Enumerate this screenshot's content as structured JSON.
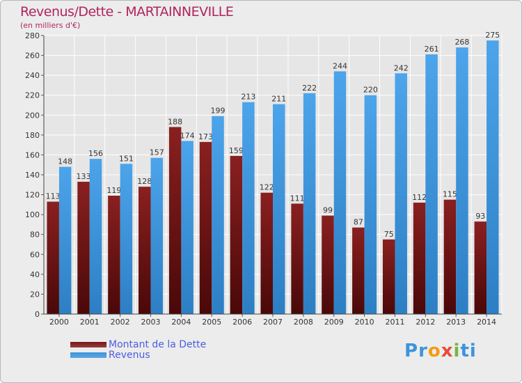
{
  "header": {
    "title": "Revenus/Dette - MARTAINNEVILLE",
    "subtitle": "(en milliers d'€)"
  },
  "colors": {
    "background": "#ececec",
    "title": "#b0245d",
    "dette": "#7a1414",
    "revenus": "#3c94dc",
    "legend_text": "#4a5de0",
    "grid": "#ffffff"
  },
  "legend": {
    "items": [
      {
        "label": "Montant de la Dette",
        "color": "#7a1414"
      },
      {
        "label": "Revenus",
        "color": "#3c94dc"
      }
    ]
  },
  "logo": {
    "letters": [
      "P",
      "r",
      "o",
      "x",
      "i",
      "t",
      "i"
    ],
    "colors": [
      "#3c94dc",
      "#3c94dc",
      "#f39c12",
      "#e74c3c",
      "#7cb342",
      "#3c94dc",
      "#3c94dc"
    ]
  },
  "chart_data": {
    "type": "bar",
    "categories": [
      "2000",
      "2001",
      "2002",
      "2003",
      "2004",
      "2005",
      "2006",
      "2007",
      "2008",
      "2009",
      "2010",
      "2011",
      "2012",
      "2013",
      "2014"
    ],
    "series": [
      {
        "name": "Montant de la Dette",
        "values": [
          113,
          133,
          119,
          128,
          188,
          173,
          159,
          122,
          111,
          99,
          87,
          75,
          112,
          115,
          93
        ]
      },
      {
        "name": "Revenus",
        "values": [
          148,
          156,
          151,
          157,
          174,
          199,
          213,
          211,
          222,
          244,
          220,
          242,
          261,
          268,
          275
        ]
      }
    ],
    "ylim": [
      0,
      280
    ],
    "yticks": [
      0,
      20,
      40,
      60,
      80,
      100,
      120,
      140,
      160,
      180,
      200,
      220,
      240,
      260,
      280
    ],
    "grid": true,
    "legend_position": "bottom-left"
  }
}
